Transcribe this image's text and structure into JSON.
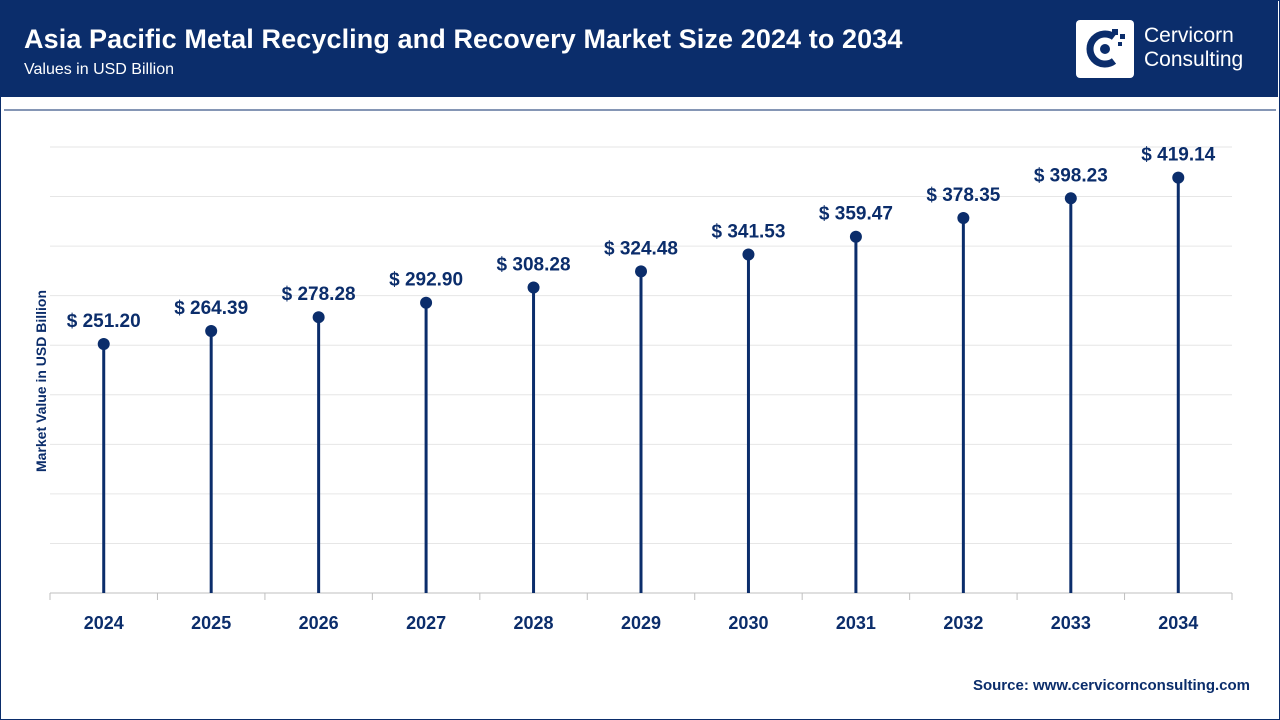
{
  "header": {
    "title": "Asia Pacific Metal Recycling and Recovery Market Size 2024 to 2034",
    "subtitle": "Values in USD Billion"
  },
  "logo": {
    "line1": "Cervicorn",
    "line2": "Consulting",
    "icon": "cervicorn-logo-icon"
  },
  "source": {
    "label": "Source:",
    "url": "www.cervicornconsulting.com"
  },
  "colors": {
    "header_bg": "#0b2d6b",
    "series": "#0b2d6b",
    "grid": "#e6e6e6"
  },
  "chart_data": {
    "type": "lollipop",
    "title": "Asia Pacific Metal Recycling and Recovery Market Size 2024 to 2034",
    "subtitle": "Values in USD Billion",
    "ylabel": "Market Value in USD Billion",
    "xlabel": "",
    "categories": [
      "2024",
      "2025",
      "2026",
      "2027",
      "2028",
      "2029",
      "2030",
      "2031",
      "2032",
      "2033",
      "2034"
    ],
    "values": [
      251.2,
      264.39,
      278.28,
      292.9,
      308.28,
      324.48,
      341.53,
      359.47,
      378.35,
      398.23,
      419.14
    ],
    "value_labels": [
      "$ 251.20",
      "$ 264.39",
      "$ 278.28",
      "$ 292.90",
      "$ 308.28",
      "$ 324.48",
      "$ 341.53",
      "$ 359.47",
      "$ 378.35",
      "$ 398.23",
      "$ 419.14"
    ],
    "ylim": [
      0,
      450
    ],
    "grid": true,
    "legend": "none"
  }
}
